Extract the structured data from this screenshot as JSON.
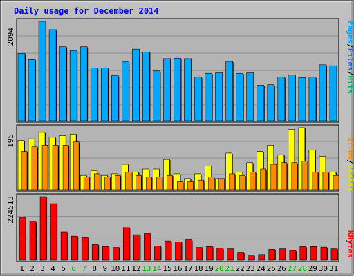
{
  "chart_data": [
    {
      "type": "bar",
      "title": "Daily usage for December 2014",
      "categories": [
        "1",
        "2",
        "3",
        "4",
        "5",
        "6",
        "7",
        "8",
        "9",
        "10",
        "11",
        "12",
        "13",
        "14",
        "15",
        "16",
        "17",
        "18",
        "19",
        "20",
        "21",
        "22",
        "23",
        "24",
        "25",
        "26",
        "27",
        "28",
        "29",
        "30",
        "31"
      ],
      "weekend_days": [
        "6",
        "7",
        "13",
        "14",
        "20",
        "21",
        "27",
        "28"
      ],
      "ymax_label": "2094",
      "ylim": [
        0,
        2094
      ],
      "legend": [
        "Pages",
        "/",
        "Files",
        "/",
        "Hits"
      ],
      "series": [
        {
          "name": "Hits",
          "color": "#00a8ff",
          "values": [
            1420,
            1290,
            2094,
            1920,
            1560,
            1480,
            1560,
            1110,
            1110,
            950,
            1240,
            1510,
            1450,
            1050,
            1310,
            1320,
            1310,
            920,
            1000,
            1010,
            1250,
            1000,
            1010,
            750,
            760,
            920,
            970,
            910,
            920,
            1180,
            1160
          ]
        },
        {
          "name": "Files",
          "color": "#1ea1ff",
          "values": [
            1420,
            1290,
            2094,
            1920,
            1560,
            1480,
            1560,
            1110,
            1110,
            950,
            1240,
            1510,
            1450,
            1050,
            1310,
            1320,
            1310,
            920,
            1000,
            1010,
            1250,
            1000,
            1010,
            750,
            760,
            920,
            970,
            910,
            920,
            1180,
            1160
          ]
        }
      ],
      "grid": true
    },
    {
      "type": "bar",
      "ymax_label": "195",
      "ylim": [
        0,
        195
      ],
      "legend": [
        "Sites",
        "/",
        "Visits"
      ],
      "series": [
        {
          "name": "Visits",
          "color": "#ffff00",
          "values": [
            155,
            160,
            180,
            165,
            170,
            175,
            45,
            60,
            45,
            50,
            80,
            55,
            65,
            65,
            95,
            50,
            35,
            50,
            75,
            35,
            115,
            55,
            85,
            120,
            140,
            110,
            190,
            195,
            125,
            105,
            55
          ]
        },
        {
          "name": "Sites",
          "color": "#ff8c00",
          "values": [
            120,
            135,
            140,
            140,
            140,
            150,
            40,
            50,
            40,
            45,
            55,
            45,
            40,
            40,
            45,
            25,
            25,
            30,
            40,
            35,
            50,
            45,
            55,
            65,
            80,
            85,
            85,
            90,
            55,
            55,
            45
          ]
        }
      ],
      "grid": true
    },
    {
      "type": "bar",
      "ymax_label": "224513",
      "ylim": [
        0,
        224513
      ],
      "legend": [
        "KBytes"
      ],
      "series": [
        {
          "name": "KBytes",
          "color": "#ff0000",
          "values": [
            150000,
            135000,
            224513,
            200000,
            100000,
            85000,
            80000,
            55000,
            48000,
            45000,
            115000,
            90000,
            95000,
            50000,
            68000,
            65000,
            72000,
            45000,
            48000,
            42000,
            40000,
            28000,
            18000,
            20000,
            38000,
            40000,
            34000,
            48000,
            48000,
            46000,
            40000
          ]
        }
      ],
      "grid": true
    }
  ],
  "colors": {
    "frame_bg": "#c0c0c0",
    "plot_bg": "#b4b4b4",
    "title": "#0000ff",
    "weekday_label": "#000000",
    "weekend_label": "#00aa00",
    "legend_sep": "#000000"
  }
}
